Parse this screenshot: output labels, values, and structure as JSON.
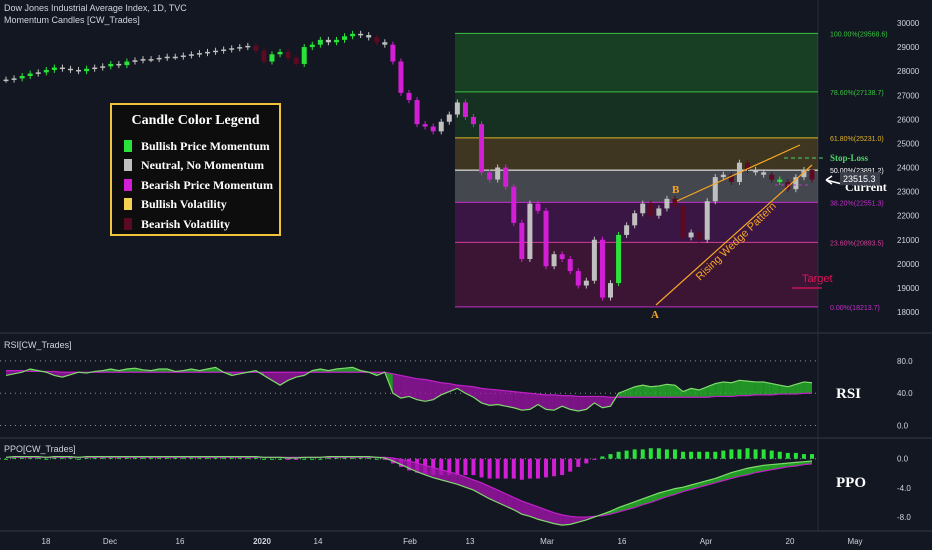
{
  "header": {
    "title": "Dow Jones Industrial Average Index, 1D, TVC",
    "subtitle": "Momentum Candles [CW_Trades]"
  },
  "legend": {
    "title": "Candle Color Legend",
    "items": [
      {
        "label": "Bullish Price Momentum",
        "color": "#29e33a"
      },
      {
        "label": "Neutral, No Momentum",
        "color": "#c0c0c0"
      },
      {
        "label": "Bearish Price Momentum",
        "color": "#d21fd6"
      },
      {
        "label": "Bullish Volatility",
        "color": "#f4d153"
      },
      {
        "label": "Bearish Volatility",
        "color": "#5c0a22"
      }
    ]
  },
  "colors": {
    "background": "#131722",
    "fib_line": "#ffffff",
    "wedge": "#f5a623",
    "stop_loss": "#4fd16a",
    "target": "#e0145a",
    "rsi_line": "#7fdc6c",
    "rsi_signal": "#c020c8",
    "ppo_line": "#7fdc6c",
    "ppo_signal": "#c020c8"
  },
  "chart_data": [
    {
      "type": "line",
      "title": "Dow Jones Industrial Average Index, 1D, TVC",
      "x": [
        "18",
        "Dec",
        "16",
        "2020",
        "14",
        "Feb",
        "13",
        "Mar",
        "16",
        "Apr",
        "20",
        "May"
      ],
      "y_ticks": [
        18000,
        19000,
        20000,
        21000,
        22000,
        23000,
        24000,
        25000,
        26000,
        27000,
        28000,
        29000,
        30000
      ],
      "ylim": [
        17500,
        30600
      ],
      "fib_levels": [
        {
          "label": "100.00%(29568.6)",
          "value": 29568.6
        },
        {
          "label": "78.60%(27138.7)",
          "value": 27138.7
        },
        {
          "label": "61.80%(25231.0)",
          "value": 25231.0
        },
        {
          "label": "50.00%(23891.2)",
          "value": 23891.2
        },
        {
          "label": "38.20%(22551.3)",
          "value": 22551.3
        },
        {
          "label": "23.60%(20893.5)",
          "value": 20893.5
        },
        {
          "label": "0.00%(18213.7)",
          "value": 18213.7
        }
      ],
      "current_price": "23515.3",
      "close_series": [
        27650,
        27700,
        27800,
        27900,
        27950,
        28050,
        28150,
        28100,
        28050,
        28000,
        28100,
        28150,
        28200,
        28300,
        28250,
        28400,
        28450,
        28500,
        28500,
        28550,
        28600,
        28600,
        28650,
        28700,
        28750,
        28800,
        28850,
        28900,
        28950,
        29000,
        29050,
        28850,
        28400,
        28700,
        28800,
        28550,
        28300,
        29000,
        29100,
        29300,
        29200,
        29300,
        29450,
        29550,
        29500,
        29400,
        29200,
        29100,
        28400,
        27100,
        26800,
        25800,
        25700,
        25500,
        25900,
        26200,
        26700,
        26100,
        25800,
        23800,
        23500,
        24000,
        23200,
        21700,
        20200,
        22500,
        22200,
        19900,
        20400,
        20200,
        19700,
        19100,
        19300,
        21000,
        18600,
        19200,
        21200,
        21600,
        22100,
        22500,
        22000,
        22300,
        22700,
        22400,
        21100,
        21300,
        21000,
        22600,
        23600,
        23700,
        23400,
        24200,
        23900,
        23800,
        23700,
        23500,
        23400,
        23100,
        23600,
        23900,
        23500
      ],
      "annotations": [
        "Rising Wedge Pattern",
        "Stop-Loss",
        "Current",
        "Target",
        "A",
        "B"
      ]
    },
    {
      "type": "area",
      "title": "RSI[CW_Trades]",
      "label": "RSI",
      "y_ticks": [
        0,
        40,
        80
      ],
      "ylim": [
        -8,
        96
      ],
      "rsi": [
        62,
        64,
        66,
        70,
        68,
        66,
        62,
        60,
        63,
        66,
        65,
        67,
        68,
        70,
        68,
        70,
        71,
        69,
        68,
        70,
        70,
        67,
        68,
        70,
        68,
        70,
        72,
        66,
        62,
        64,
        66,
        68,
        62,
        56,
        50,
        56,
        60,
        62,
        68,
        70,
        68,
        70,
        71,
        72,
        68,
        66,
        62,
        66,
        40,
        34,
        36,
        32,
        30,
        32,
        38,
        42,
        46,
        40,
        35,
        28,
        25,
        26,
        24,
        22,
        19,
        20,
        26,
        20,
        19,
        24,
        20,
        18,
        20,
        28,
        22,
        24,
        40,
        44,
        48,
        50,
        48,
        49,
        51,
        50,
        42,
        46,
        44,
        48,
        52,
        54,
        53,
        56,
        55,
        54,
        54,
        52,
        50,
        48,
        51,
        54,
        53
      ],
      "signal": [
        68,
        68,
        68,
        67,
        67,
        67,
        67,
        66,
        66,
        66,
        66,
        66,
        66,
        66,
        66,
        66,
        66,
        66,
        66,
        66,
        66,
        66,
        66,
        66,
        66,
        66,
        66,
        66,
        66,
        66,
        66,
        66,
        66,
        66,
        66,
        66,
        66,
        66,
        66,
        66,
        66,
        66,
        66,
        66,
        66,
        66,
        66,
        66,
        64,
        62,
        60,
        58,
        57,
        55,
        53,
        52,
        50,
        49,
        48,
        46,
        45,
        44,
        43,
        42,
        41,
        40,
        39,
        38,
        38,
        37,
        37,
        36,
        36,
        36,
        36,
        35,
        35,
        35,
        35,
        35,
        35,
        35,
        35,
        35,
        35,
        35,
        35,
        35,
        36,
        36,
        36,
        37,
        37,
        38,
        38,
        38,
        39,
        39,
        39,
        40,
        40
      ]
    },
    {
      "type": "area",
      "title": "PPO[CW_Trades]",
      "label": "PPO",
      "y_ticks": [
        0.0,
        -4.0,
        -8.0
      ],
      "ylim": [
        -9.5,
        1.2
      ],
      "ppo": [
        0.2,
        0.3,
        0.3,
        0.3,
        0.3,
        0.2,
        0.3,
        0.3,
        0.3,
        0.2,
        0.3,
        0.3,
        0.3,
        0.3,
        0.3,
        0.3,
        0.3,
        0.3,
        0.3,
        0.3,
        0.3,
        0.3,
        0.3,
        0.3,
        0.3,
        0.3,
        0.3,
        0.3,
        0.3,
        0.3,
        0.3,
        0.3,
        0.2,
        0.2,
        0.2,
        0.1,
        0.1,
        0.2,
        0.2,
        0.2,
        0.3,
        0.3,
        0.3,
        0.3,
        0.3,
        0.3,
        0.2,
        0.1,
        -0.3,
        -0.8,
        -1.3,
        -1.8,
        -2.2,
        -2.6,
        -2.9,
        -3.2,
        -3.5,
        -3.9,
        -4.3,
        -4.9,
        -5.5,
        -6.0,
        -6.5,
        -7.0,
        -7.6,
        -7.9,
        -8.3,
        -8.6,
        -8.9,
        -9.1,
        -9.0,
        -8.7,
        -8.4,
        -8.0,
        -7.6,
        -7.2,
        -6.7,
        -6.3,
        -5.9,
        -5.5,
        -5.1,
        -4.7,
        -4.4,
        -4.1,
        -3.9,
        -3.6,
        -3.3,
        -3.0,
        -2.7,
        -2.3,
        -1.9,
        -1.6,
        -1.3,
        -1.1,
        -0.9,
        -0.8,
        -0.7,
        -0.6,
        -0.5,
        -0.4,
        -0.3
      ],
      "signal": [
        0.2,
        0.2,
        0.2,
        0.2,
        0.2,
        0.2,
        0.2,
        0.2,
        0.2,
        0.2,
        0.2,
        0.2,
        0.2,
        0.2,
        0.2,
        0.2,
        0.2,
        0.2,
        0.2,
        0.2,
        0.2,
        0.2,
        0.2,
        0.2,
        0.2,
        0.2,
        0.2,
        0.2,
        0.2,
        0.2,
        0.2,
        0.2,
        0.2,
        0.2,
        0.2,
        0.2,
        0.2,
        0.2,
        0.2,
        0.2,
        0.2,
        0.2,
        0.2,
        0.2,
        0.2,
        0.2,
        0.2,
        0.2,
        0.1,
        -0.1,
        -0.3,
        -0.6,
        -0.9,
        -1.2,
        -1.5,
        -1.8,
        -2.1,
        -2.5,
        -2.9,
        -3.3,
        -3.8,
        -4.3,
        -4.8,
        -5.3,
        -5.8,
        -6.2,
        -6.6,
        -7.0,
        -7.4,
        -7.7,
        -7.9,
        -8.0,
        -8.0,
        -7.9,
        -7.8,
        -7.6,
        -7.3,
        -7.0,
        -6.7,
        -6.3,
        -6.0,
        -5.6,
        -5.2,
        -4.9,
        -4.5,
        -4.2,
        -3.9,
        -3.6,
        -3.3,
        -3.0,
        -2.7,
        -2.4,
        -2.2,
        -1.9,
        -1.7,
        -1.5,
        -1.3,
        -1.1,
        -1.0,
        -0.8,
        -0.7
      ]
    }
  ]
}
